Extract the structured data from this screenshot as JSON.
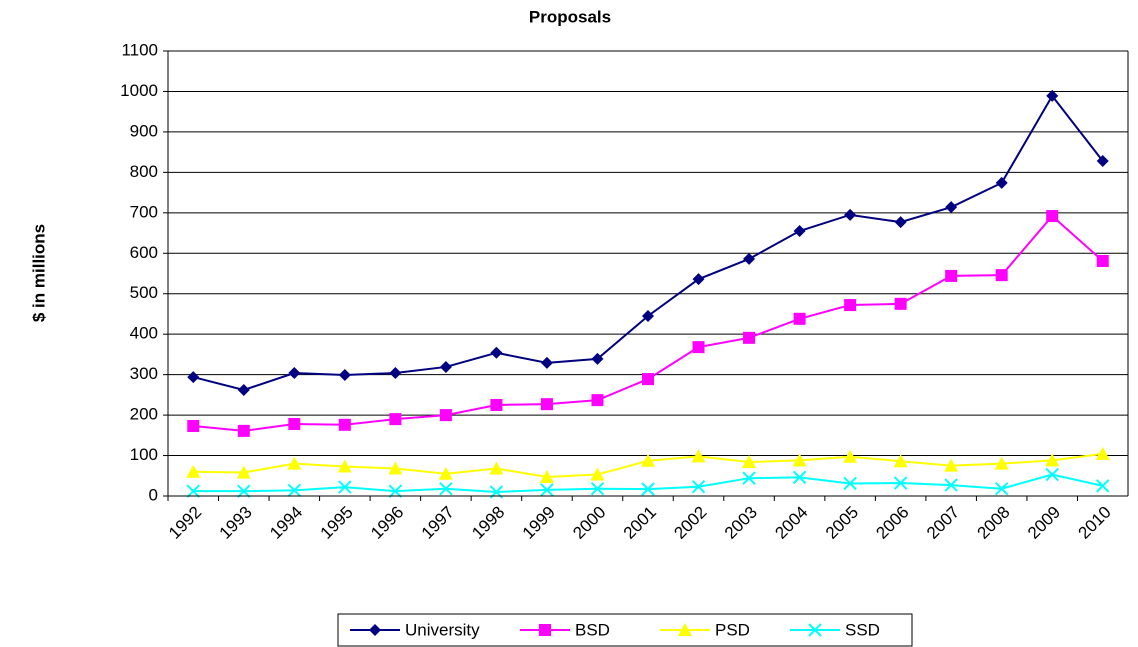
{
  "chart_data": {
    "type": "line",
    "title": "Proposals",
    "y_label": "$ in millions",
    "categories": [
      "1992",
      "1993",
      "1994",
      "1995",
      "1996",
      "1997",
      "1998",
      "1999",
      "2000",
      "2001",
      "2002",
      "2003",
      "2004",
      "2005",
      "2006",
      "2007",
      "2008",
      "2009",
      "2010"
    ],
    "series": [
      {
        "name": "University",
        "color": "#000080",
        "marker": "diamond",
        "values": [
          294,
          262,
          304,
          299,
          304,
          319,
          354,
          329,
          339,
          445,
          536,
          586,
          655,
          695,
          677,
          714,
          774,
          989,
          828
        ]
      },
      {
        "name": "BSD",
        "color": "#ff00ff",
        "marker": "square",
        "values": [
          173,
          161,
          178,
          176,
          190,
          200,
          225,
          227,
          237,
          289,
          368,
          391,
          438,
          472,
          475,
          544,
          546,
          692,
          581
        ]
      },
      {
        "name": "PSD",
        "color": "#ffff00",
        "marker": "triangle",
        "values": [
          60,
          58,
          80,
          73,
          68,
          55,
          68,
          47,
          53,
          87,
          98,
          84,
          88,
          97,
          86,
          75,
          80,
          88,
          104
        ]
      },
      {
        "name": "SSD",
        "color": "#00ffff",
        "marker": "x",
        "values": [
          12,
          12,
          14,
          22,
          12,
          18,
          10,
          15,
          18,
          17,
          23,
          44,
          46,
          31,
          32,
          27,
          18,
          53,
          25
        ]
      }
    ],
    "ylim": [
      0,
      1100
    ],
    "yticks": [
      0,
      100,
      200,
      300,
      400,
      500,
      600,
      700,
      800,
      900,
      1000,
      1100
    ],
    "grid": true
  }
}
